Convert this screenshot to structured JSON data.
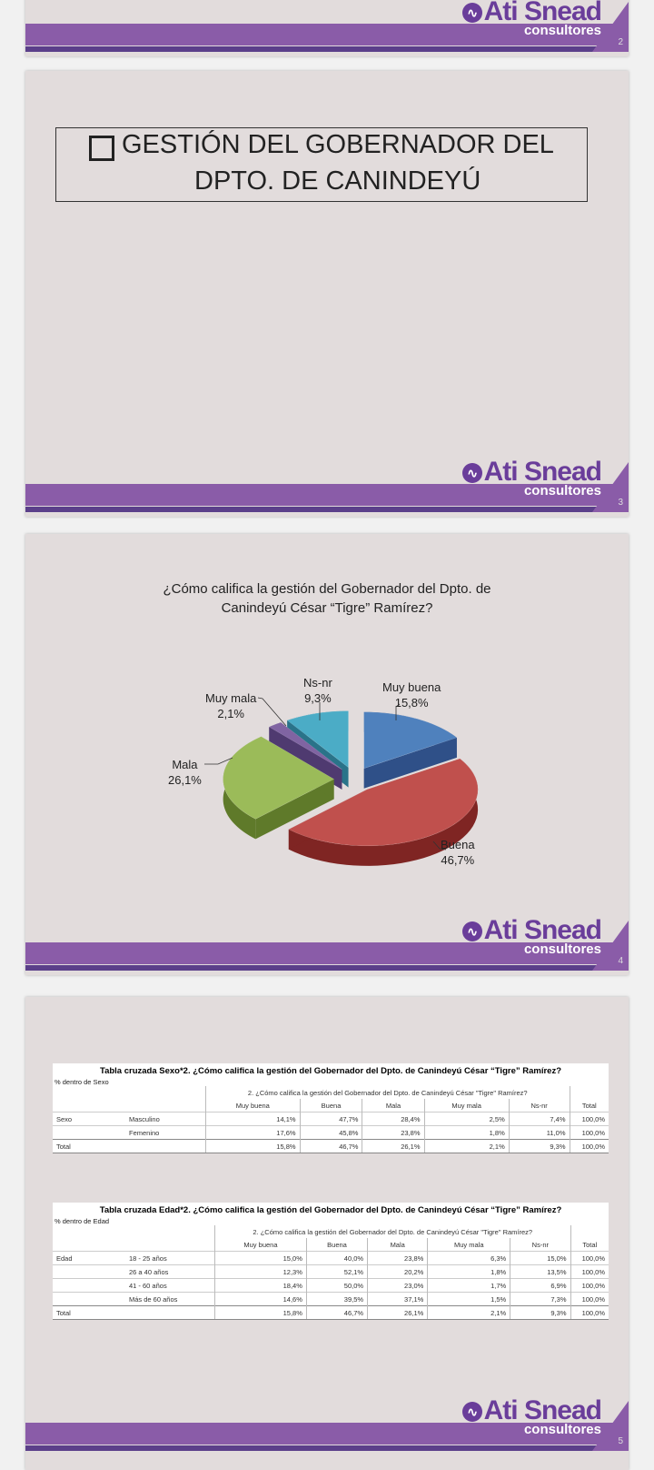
{
  "brand": {
    "name": "Ati Snead",
    "sub": "consultores"
  },
  "slides": [
    {
      "page": "2"
    },
    {
      "page": "3",
      "title_line1": "GESTIÓN DEL GOBERNADOR DEL",
      "title_line2": "DPTO. DE CANINDEYÚ"
    },
    {
      "page": "4"
    },
    {
      "page": "5"
    }
  ],
  "chart_data": {
    "type": "pie",
    "title_line1": "¿Cómo califica la gestión del Gobernador del Dpto. de",
    "title_line2": "Canindeyú César “Tigre” Ramírez?",
    "slices": [
      {
        "label": "Muy buena",
        "value": 15.8,
        "value_label": "15,8%",
        "color": "#4f81bd",
        "side": "#2f5088"
      },
      {
        "label": "Buena",
        "value": 46.7,
        "value_label": "46,7%",
        "color": "#c0504d",
        "side": "#7f2523"
      },
      {
        "label": "Mala",
        "value": 26.1,
        "value_label": "26,1%",
        "color": "#9bbb59",
        "side": "#5f7a2a"
      },
      {
        "label": "Muy mala",
        "value": 2.1,
        "value_label": "2,1%",
        "color": "#8064a2",
        "side": "#4f3a70"
      },
      {
        "label": "Ns-nr",
        "value": 9.3,
        "value_label": "9,3%",
        "color": "#4bacc6",
        "side": "#2a7389"
      }
    ]
  },
  "table_sexo": {
    "caption": "Tabla cruzada Sexo*2. ¿Cómo califica la gestión del Gobernador del Dpto. de  Canindeyú César “Tigre” Ramírez?",
    "subtitle": "% dentro de Sexo",
    "question": "2. ¿Cómo califica la gestión del Gobernador del Dpto. de  Canindeyú César \"Tigre\" Ramírez?",
    "group": "Sexo",
    "columns": [
      "Muy buena",
      "Buena",
      "Mala",
      "Muy mala",
      "Ns-nr",
      "Total"
    ],
    "rows": [
      {
        "label": "Masculino",
        "values": [
          "14,1%",
          "47,7%",
          "28,4%",
          "2,5%",
          "7,4%",
          "100,0%"
        ]
      },
      {
        "label": "Femenino",
        "values": [
          "17,6%",
          "45,8%",
          "23,8%",
          "1,8%",
          "11,0%",
          "100,0%"
        ]
      }
    ],
    "total": {
      "label": "Total",
      "values": [
        "15,8%",
        "46,7%",
        "26,1%",
        "2,1%",
        "9,3%",
        "100,0%"
      ]
    }
  },
  "table_edad": {
    "caption": "Tabla cruzada Edad*2. ¿Cómo califica la gestión del Gobernador del Dpto. de  Canindeyú César “Tigre” Ramírez?",
    "subtitle": "% dentro de Edad",
    "question": "2. ¿Cómo califica la gestión del Gobernador del Dpto. de  Canindeyú César \"Tigre\" Ramírez?",
    "group": "Edad",
    "columns": [
      "Muy buena",
      "Buena",
      "Mala",
      "Muy mala",
      "Ns-nr",
      "Total"
    ],
    "rows": [
      {
        "label": "18 - 25 años",
        "values": [
          "15,0%",
          "40,0%",
          "23,8%",
          "6,3%",
          "15,0%",
          "100,0%"
        ]
      },
      {
        "label": "26 a 40 años",
        "values": [
          "12,3%",
          "52,1%",
          "20,2%",
          "1,8%",
          "13,5%",
          "100,0%"
        ]
      },
      {
        "label": "41 - 60 años",
        "values": [
          "18,4%",
          "50,0%",
          "23,0%",
          "1,7%",
          "6,9%",
          "100,0%"
        ]
      },
      {
        "label": "Más de 60 años",
        "values": [
          "14,6%",
          "39,5%",
          "37,1%",
          "1,5%",
          "7,3%",
          "100,0%"
        ]
      }
    ],
    "total": {
      "label": "Total",
      "values": [
        "15,8%",
        "46,7%",
        "26,1%",
        "2,1%",
        "9,3%",
        "100,0%"
      ]
    }
  }
}
